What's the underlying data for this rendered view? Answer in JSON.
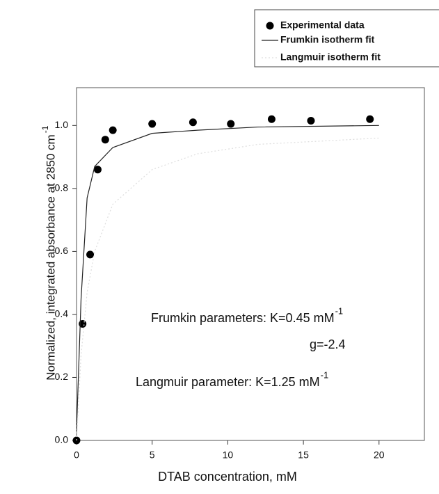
{
  "chart_data": {
    "type": "scatter",
    "xlabel": "DTAB concentration, mM",
    "ylabel": "Normalized, integrated absorbance at 2850 cm",
    "ylabel_sup": "-1",
    "xlim": [
      0,
      23
    ],
    "ylim": [
      0,
      1.12
    ],
    "xticks": [
      0,
      5,
      10,
      15,
      20
    ],
    "yticks": [
      {
        "value": 0,
        "label": "0.0"
      },
      0.2,
      0.4,
      0.6,
      0.8,
      {
        "value": 1,
        "label": "1.0"
      }
    ],
    "series": [
      {
        "name": "Experimental data",
        "mode": "markers",
        "color": "#000000",
        "x": [
          0,
          0.4,
          0.9,
          1.4,
          1.9,
          2.4,
          5.0,
          7.7,
          10.2,
          12.9,
          15.5,
          19.4
        ],
        "values": [
          0,
          0.37,
          0.59,
          0.86,
          0.955,
          0.985,
          1.005,
          1.01,
          1.005,
          1.02,
          1.015,
          1.02
        ]
      },
      {
        "name": "Frumkin isotherm fit",
        "mode": "line",
        "color": "#222222",
        "x": [
          0,
          0.3,
          0.7,
          1.2,
          2.4,
          5,
          8,
          12,
          20
        ],
        "values": [
          0.03,
          0.45,
          0.77,
          0.87,
          0.93,
          0.975,
          0.985,
          0.995,
          1.0
        ]
      },
      {
        "name": "Langmuir isotherm fit",
        "mode": "dotted",
        "color": "#dddddd",
        "x": [
          0,
          0.3,
          0.7,
          1.2,
          2.4,
          5,
          8,
          12,
          20
        ],
        "values": [
          0,
          0.27,
          0.47,
          0.6,
          0.75,
          0.86,
          0.91,
          0.94,
          0.96
        ]
      }
    ],
    "annotations": [
      {
        "text": "Frumkin parameters: K=0.45 mM",
        "sup": "-1"
      },
      {
        "text": "g=-2.4"
      },
      {
        "text": "Langmuir parameter: K=1.25 mM",
        "sup": "-1"
      }
    ]
  }
}
